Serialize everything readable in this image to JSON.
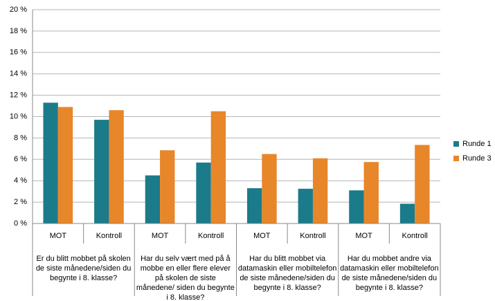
{
  "chart_data": {
    "type": "bar",
    "categories": [
      "MOT",
      "Kontroll",
      "MOT",
      "Kontroll",
      "MOT",
      "Kontroll",
      "MOT",
      "Kontroll"
    ],
    "groups": [
      "Er du blitt mobbet på skolen de siste månedene/siden du begynte i 8. klasse?",
      "Har du selv vært med på å mobbe en eller flere elever på skolen de siste månedene/ siden du begynte i 8. klasse?",
      "Har du blitt mobbet via datamaskin eller mobiltelefon de siste månedene/siden du begynte i 8. klasse?",
      "Har du mobbet andre via datamaskin eller mobiltelefon de siste månedene/siden du begynte i 8. klasse?"
    ],
    "series": [
      {
        "name": "Runde 1",
        "color": "#1b7b8a",
        "values": [
          11.3,
          9.7,
          4.5,
          5.7,
          3.3,
          3.25,
          3.1,
          1.85
        ]
      },
      {
        "name": "Runde 3",
        "color": "#e8862a",
        "values": [
          10.9,
          10.6,
          6.85,
          10.5,
          6.5,
          6.1,
          5.75,
          7.35
        ]
      }
    ],
    "ylim": [
      0,
      20
    ],
    "yticks": [
      {
        "value": 0,
        "label": "0 %"
      },
      {
        "value": 2,
        "label": "2 %"
      },
      {
        "value": 4,
        "label": "4 %"
      },
      {
        "value": 6,
        "label": "6 %"
      },
      {
        "value": 8,
        "label": "8 %"
      },
      {
        "value": 10,
        "label": "10 %"
      },
      {
        "value": 12,
        "label": "12 %"
      },
      {
        "value": 14,
        "label": "14 %"
      },
      {
        "value": 16,
        "label": "16 %"
      },
      {
        "value": 18,
        "label": "18 %"
      },
      {
        "value": 20,
        "label": "20 %"
      }
    ],
    "grid": true,
    "legend": "right"
  }
}
